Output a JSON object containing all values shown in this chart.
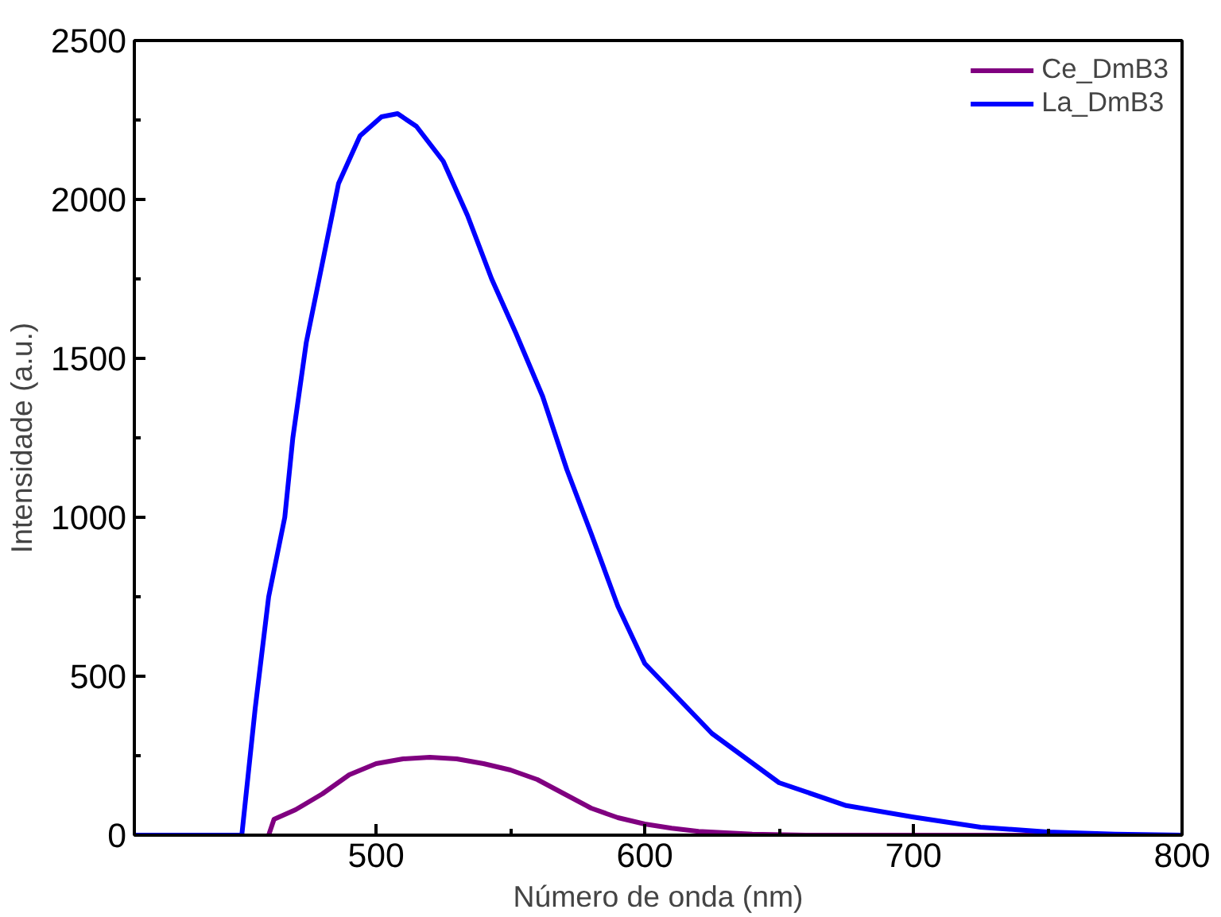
{
  "chart_data": {
    "type": "line",
    "xlabel": "Número de onda (nm)",
    "ylabel": "Intensidade (a.u.)",
    "xlim": [
      410,
      800
    ],
    "ylim": [
      0,
      2500
    ],
    "xticks": [
      500,
      600,
      700,
      800,
      {
        "value": 550,
        "label": null
      },
      {
        "value": 650,
        "label": null
      },
      {
        "value": 750,
        "label": null
      }
    ],
    "yticks": [
      0,
      500,
      1000,
      1500,
      2000,
      2500,
      {
        "value": 250,
        "label": null
      },
      {
        "value": 750,
        "label": null
      },
      {
        "value": 1250,
        "label": null
      },
      {
        "value": 1750,
        "label": null
      },
      {
        "value": 2250,
        "label": null
      }
    ],
    "grid": false,
    "legend": "top right",
    "line_style": "solid",
    "series": [
      {
        "name": "Ce_DmB3",
        "color": "#800080",
        "x": [
          460,
          462,
          470,
          480,
          490,
          500,
          510,
          520,
          530,
          540,
          550,
          560,
          570,
          580,
          590,
          600,
          610,
          620,
          640,
          660,
          800
        ],
        "values": [
          0,
          50,
          80,
          130,
          190,
          225,
          240,
          245,
          240,
          225,
          205,
          175,
          130,
          85,
          55,
          35,
          22,
          12,
          3,
          0,
          0
        ]
      },
      {
        "name": "La_DmB3",
        "color": "#0000ff",
        "x": [
          410,
          450,
          455,
          460,
          466,
          469,
          474,
          480,
          486,
          494,
          502,
          508,
          515,
          525,
          534,
          543,
          552,
          562,
          571,
          580,
          590,
          600,
          625,
          650,
          675,
          700,
          725,
          750,
          775,
          800
        ],
        "values": [
          0,
          0,
          400,
          750,
          1000,
          1250,
          1550,
          1800,
          2050,
          2200,
          2260,
          2270,
          2230,
          2120,
          1950,
          1750,
          1580,
          1380,
          1150,
          950,
          720,
          540,
          320,
          165,
          93,
          57,
          25,
          10,
          3,
          0
        ]
      }
    ]
  }
}
